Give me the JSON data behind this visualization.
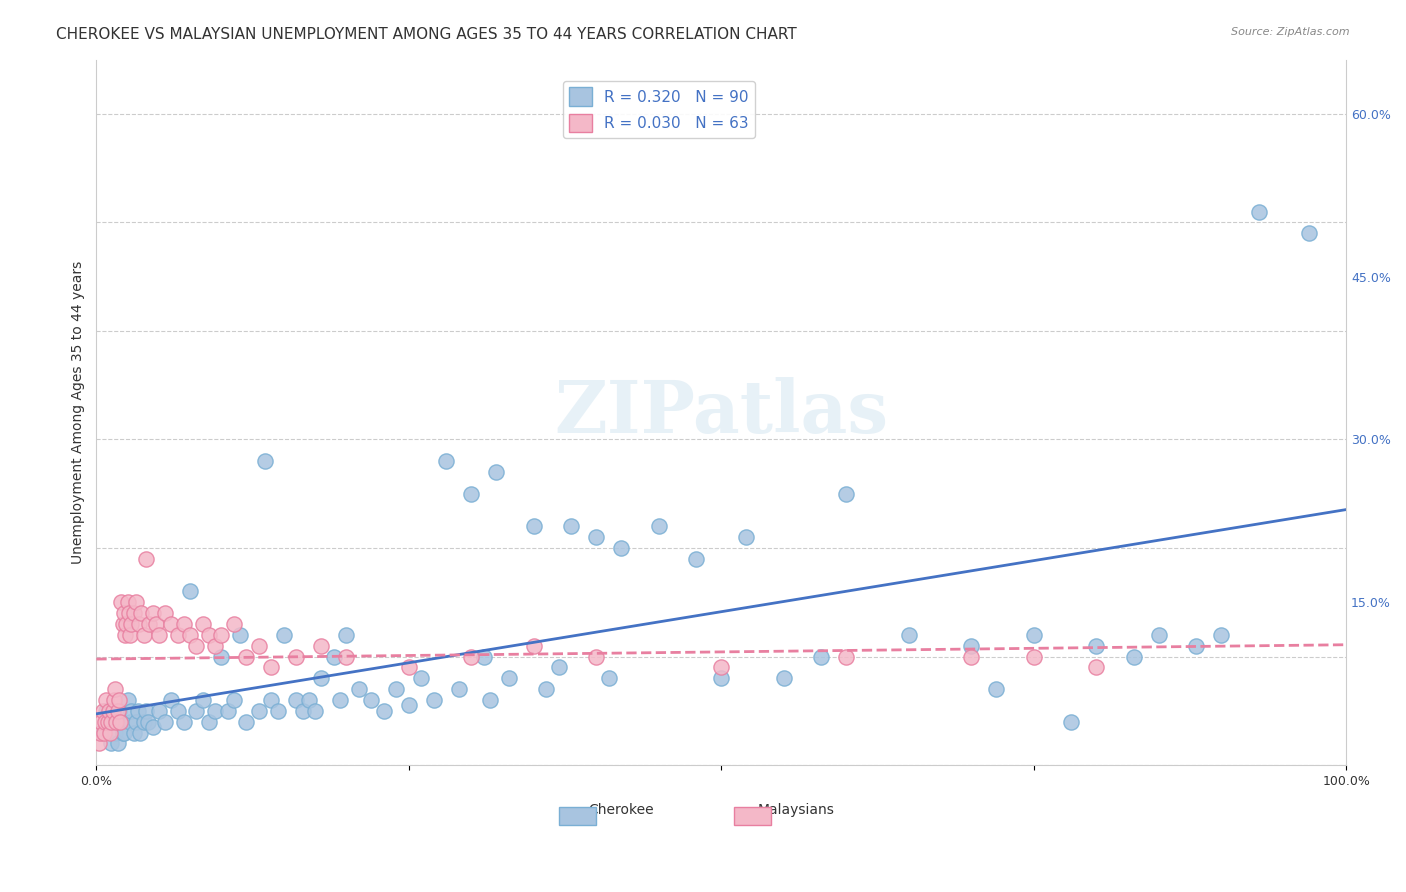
{
  "title": "CHEROKEE VS MALAYSIAN UNEMPLOYMENT AMONG AGES 35 TO 44 YEARS CORRELATION CHART",
  "source": "Source: ZipAtlas.com",
  "xlabel": "",
  "ylabel": "Unemployment Among Ages 35 to 44 years",
  "xlim": [
    0,
    1.0
  ],
  "ylim": [
    0,
    0.65
  ],
  "xticks": [
    0.0,
    0.25,
    0.5,
    0.75,
    1.0
  ],
  "xticklabels": [
    "0.0%",
    "",
    "",
    "",
    "100.0%"
  ],
  "yticks_right": [
    0.0,
    0.15,
    0.3,
    0.45,
    0.6
  ],
  "yticklabels_right": [
    "",
    "15.0%",
    "30.0%",
    "45.0%",
    "60.0%"
  ],
  "watermark": "ZIPatlas",
  "legend_cherokee_R": "R = 0.320",
  "legend_cherokee_N": "N = 90",
  "legend_malaysian_R": "R = 0.030",
  "legend_malaysian_N": "N = 63",
  "legend_cherokee_label": "Cherokee",
  "legend_malaysian_label": "Malaysians",
  "cherokee_color": "#a8c4e0",
  "cherokee_edge_color": "#7aafd4",
  "cherokee_line_color": "#4472c4",
  "malaysian_color": "#f4b8c8",
  "malaysian_edge_color": "#e87fa0",
  "malaysian_line_color": "#e87fa0",
  "title_fontsize": 11,
  "axis_label_fontsize": 10,
  "tick_fontsize": 9,
  "background_color": "#ffffff",
  "grid_color": "#cccccc",
  "cherokee_x": [
    0.005,
    0.008,
    0.01,
    0.012,
    0.015,
    0.016,
    0.017,
    0.018,
    0.02,
    0.021,
    0.022,
    0.025,
    0.027,
    0.028,
    0.03,
    0.032,
    0.033,
    0.035,
    0.038,
    0.04,
    0.041,
    0.045,
    0.05,
    0.055,
    0.06,
    0.065,
    0.07,
    0.075,
    0.08,
    0.085,
    0.09,
    0.095,
    0.1,
    0.105,
    0.11,
    0.115,
    0.12,
    0.13,
    0.135,
    0.14,
    0.145,
    0.15,
    0.16,
    0.165,
    0.17,
    0.175,
    0.18,
    0.19,
    0.195,
    0.2,
    0.21,
    0.22,
    0.23,
    0.24,
    0.25,
    0.26,
    0.27,
    0.28,
    0.29,
    0.3,
    0.31,
    0.315,
    0.32,
    0.33,
    0.35,
    0.36,
    0.37,
    0.38,
    0.4,
    0.41,
    0.42,
    0.45,
    0.48,
    0.5,
    0.52,
    0.55,
    0.58,
    0.6,
    0.65,
    0.7,
    0.72,
    0.75,
    0.78,
    0.8,
    0.83,
    0.85,
    0.88,
    0.9,
    0.93,
    0.97
  ],
  "cherokee_y": [
    0.03,
    0.05,
    0.04,
    0.02,
    0.03,
    0.04,
    0.02,
    0.05,
    0.04,
    0.03,
    0.03,
    0.06,
    0.04,
    0.05,
    0.03,
    0.04,
    0.05,
    0.03,
    0.04,
    0.05,
    0.04,
    0.035,
    0.05,
    0.04,
    0.06,
    0.05,
    0.04,
    0.16,
    0.05,
    0.06,
    0.04,
    0.05,
    0.1,
    0.05,
    0.06,
    0.12,
    0.04,
    0.05,
    0.28,
    0.06,
    0.05,
    0.12,
    0.06,
    0.05,
    0.06,
    0.05,
    0.08,
    0.1,
    0.06,
    0.12,
    0.07,
    0.06,
    0.05,
    0.07,
    0.055,
    0.08,
    0.06,
    0.28,
    0.07,
    0.25,
    0.1,
    0.06,
    0.27,
    0.08,
    0.22,
    0.07,
    0.09,
    0.22,
    0.21,
    0.08,
    0.2,
    0.22,
    0.19,
    0.08,
    0.21,
    0.08,
    0.1,
    0.25,
    0.12,
    0.11,
    0.07,
    0.12,
    0.04,
    0.11,
    0.1,
    0.12,
    0.11,
    0.12,
    0.51,
    0.49
  ],
  "malaysian_x": [
    0.002,
    0.003,
    0.004,
    0.005,
    0.006,
    0.007,
    0.008,
    0.009,
    0.01,
    0.011,
    0.012,
    0.013,
    0.014,
    0.015,
    0.016,
    0.017,
    0.018,
    0.019,
    0.02,
    0.021,
    0.022,
    0.023,
    0.024,
    0.025,
    0.026,
    0.027,
    0.028,
    0.03,
    0.032,
    0.034,
    0.036,
    0.038,
    0.04,
    0.042,
    0.045,
    0.048,
    0.05,
    0.055,
    0.06,
    0.065,
    0.07,
    0.075,
    0.08,
    0.085,
    0.09,
    0.095,
    0.1,
    0.11,
    0.12,
    0.13,
    0.14,
    0.16,
    0.18,
    0.2,
    0.25,
    0.3,
    0.35,
    0.4,
    0.5,
    0.6,
    0.7,
    0.75,
    0.8
  ],
  "malaysian_y": [
    0.02,
    0.03,
    0.04,
    0.05,
    0.03,
    0.04,
    0.06,
    0.04,
    0.05,
    0.03,
    0.04,
    0.05,
    0.06,
    0.07,
    0.04,
    0.05,
    0.06,
    0.04,
    0.15,
    0.13,
    0.14,
    0.12,
    0.13,
    0.15,
    0.14,
    0.12,
    0.13,
    0.14,
    0.15,
    0.13,
    0.14,
    0.12,
    0.19,
    0.13,
    0.14,
    0.13,
    0.12,
    0.14,
    0.13,
    0.12,
    0.13,
    0.12,
    0.11,
    0.13,
    0.12,
    0.11,
    0.12,
    0.13,
    0.1,
    0.11,
    0.09,
    0.1,
    0.11,
    0.1,
    0.09,
    0.1,
    0.11,
    0.1,
    0.09,
    0.1,
    0.1,
    0.1,
    0.09
  ]
}
